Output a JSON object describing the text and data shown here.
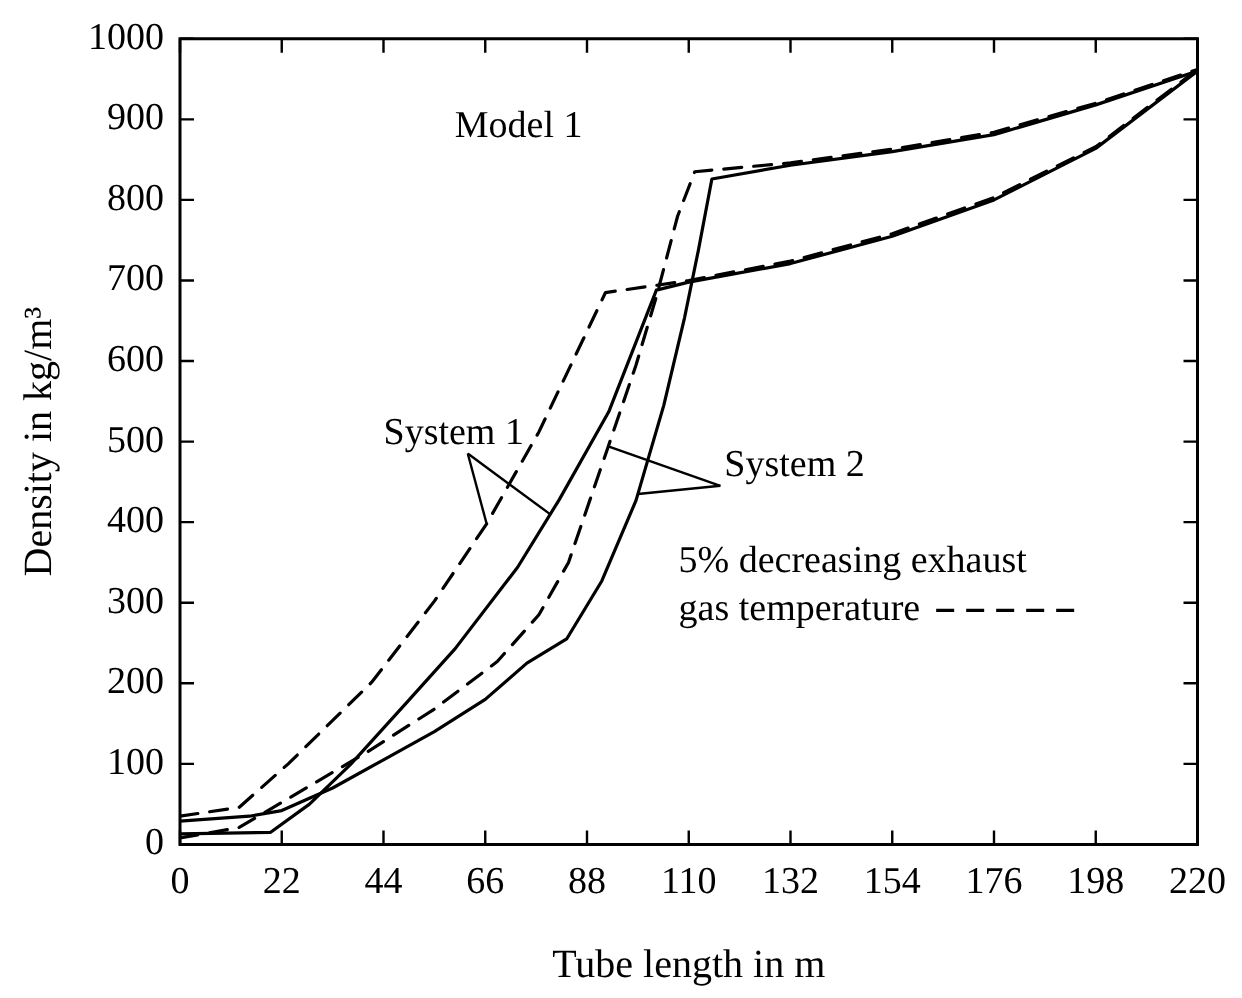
{
  "chart_data": {
    "type": "line",
    "xlabel": "Tube length in m",
    "ylabel": "Density in kg/m³",
    "xlim": [
      0,
      220
    ],
    "xticks": [
      0,
      22,
      44,
      66,
      88,
      110,
      132,
      154,
      176,
      198,
      220
    ],
    "ylim": [
      0,
      1000
    ],
    "yticks": [
      0,
      100,
      200,
      300,
      400,
      500,
      600,
      700,
      800,
      900,
      1000
    ],
    "grid": false,
    "legend": false,
    "marker": "none",
    "series": [
      {
        "color": "#000000",
        "line_style": "solid",
        "x": [
          0,
          19.6,
          28,
          37,
          49,
          59.5,
          73,
          82,
          92.7,
          103,
          110,
          132,
          154,
          176,
          198,
          220
        ],
        "values": [
          13,
          15,
          50,
          100,
          176,
          243,
          344,
          428,
          537,
          688,
          698,
          721,
          755,
          800,
          864,
          960
        ]
      },
      {
        "color": "#000000",
        "line_style": "dashed",
        "x": [
          0,
          12.8,
          23.4,
          41.4,
          55,
          66.3,
          77.6,
          92,
          103,
          110,
          132,
          154,
          176,
          198,
          220
        ],
        "values": [
          35,
          46,
          100,
          201,
          302,
          398,
          512,
          685,
          694,
          700,
          724,
          758,
          803,
          866,
          962
        ]
      },
      {
        "color": "#000000",
        "line_style": "solid",
        "x": [
          0,
          15,
          22,
          33,
          44,
          55,
          66,
          75,
          83.6,
          91.2,
          98.6,
          104.6,
          109.1,
          112.1,
          115,
          132,
          154,
          176,
          198,
          220
        ],
        "values": [
          29,
          35,
          42,
          70,
          105,
          140,
          180,
          225,
          255,
          327,
          427,
          545,
          654,
          738,
          826,
          843,
          860,
          881,
          918,
          960
        ]
      },
      {
        "color": "#000000",
        "line_style": "dashed",
        "x": [
          0,
          12.8,
          26.4,
          40,
          55,
          68.6,
          77.6,
          84,
          92.6,
          98.6,
          103,
          107.6,
          111.3,
          132,
          154,
          176,
          198,
          220
        ],
        "values": [
          8,
          21,
          67,
          113,
          168,
          227,
          285,
          350,
          494,
          595,
          680,
          780,
          835,
          846,
          863,
          884,
          920,
          962
        ]
      }
    ],
    "annotations": [
      "Model 1",
      {
        "text": "System 1",
        "x": 80,
        "y": 410
      },
      {
        "text": "System 2",
        "x": 99,
        "y": 435
      },
      "5% decreasing exhaust\ngas temperature"
    ]
  }
}
